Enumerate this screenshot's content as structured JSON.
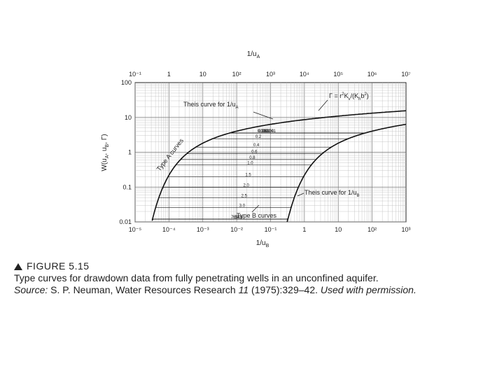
{
  "chart_data": {
    "type": "line",
    "title": "",
    "x_top_label": "1/u_A",
    "x_bottom_label": "1/u_B",
    "y_label": "W(u_A, u_B, Γ)",
    "x_top_ticks": [
      "10⁻¹",
      "1",
      "10",
      "10²",
      "10³",
      "10⁴",
      "10⁵",
      "10⁶",
      "10⁷"
    ],
    "x_bottom_ticks": [
      "10⁻⁵",
      "10⁻⁴",
      "10⁻³",
      "10⁻²",
      "10⁻¹",
      "1",
      "10",
      "10²",
      "10³"
    ],
    "y_ticks": [
      "100",
      "10",
      "1",
      "0.1",
      "0.01"
    ],
    "x_bottom_range_log10": [
      -5,
      3
    ],
    "y_range_log10": [
      -2,
      2
    ],
    "x_scale": "log",
    "y_scale": "log",
    "grid": true,
    "gamma_values": [
      0.001,
      0.004,
      0.01,
      0.03,
      0.06,
      0.1,
      0.2,
      0.4,
      0.6,
      0.8,
      1.0,
      1.5,
      2.0,
      2.5,
      3.0,
      4.0,
      5.0,
      6.0,
      7.0
    ],
    "gamma_labels": [
      "0.001",
      "0.004",
      "0.01",
      "0.03",
      "0.06",
      "0.1",
      "0.2",
      "0.4",
      "0.6",
      "0.8",
      "1.0",
      "1.5",
      "2.0",
      "2.5",
      "3.0",
      "4.0",
      "5.0",
      "6.0",
      "7.0"
    ],
    "annotations": {
      "theis_a": "Theis curve for 1/u_A",
      "theis_b": "Theis curve for 1/u_B",
      "type_a": "Type A curves",
      "type_b": "Type B curves",
      "gamma_def": "Γ = r²K_v/(K_h b²)"
    }
  },
  "labels": {
    "x_top_main": "1/u",
    "x_top_sub": "A",
    "x_bottom_main": "1/u",
    "x_bottom_sub": "B",
    "y_main": "W(u",
    "y_sub_a": "A",
    "y_mid": ", u",
    "y_sub_b": "B",
    "y_end": ", Γ)",
    "theis_a_main": "Theis curve for 1/u",
    "theis_a_sub": "A",
    "theis_b_main": "Theis curve for 1/u",
    "theis_b_sub": "B",
    "type_a": "Type A curves",
    "type_b": "Type B curves",
    "gamma_pre": "Γ = r",
    "gamma_sup": "2",
    "gamma_k": "K",
    "gamma_v": "v",
    "gamma_mid": "/(K",
    "gamma_h": "h",
    "gamma_b": "b",
    "gamma_sup2": "2",
    "gamma_end": ")"
  },
  "caption": {
    "figure_label": "FIGURE 5.15",
    "description": "Type curves for drawdown data from fully penetrating wells in an unconfined aquifer.",
    "source_label": "Source:",
    "source_author": "S. P. Neuman, Water Resources Research",
    "source_volume": "11",
    "source_rest": "(1975):329–42.",
    "permission": "Used with permission."
  }
}
